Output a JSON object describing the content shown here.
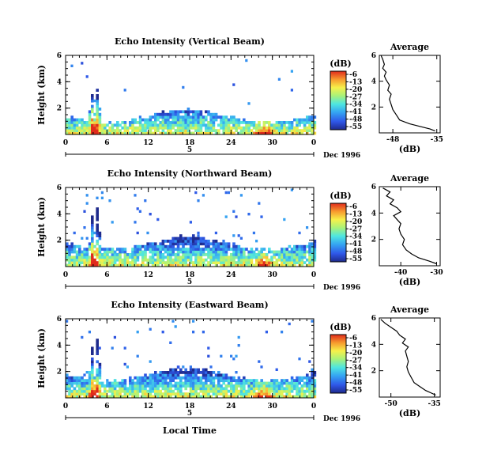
{
  "figure": {
    "dbunit": "(dB)",
    "date_label": "Dec 1996",
    "xlabel": "Local Time",
    "ylabel": "Height (km)"
  },
  "chart_data": [
    {
      "type": "heatmap",
      "title": "Echo Intensity (Vertical Beam)",
      "ylabel": "Height (km)",
      "x_ticks": [
        "0",
        "6",
        "12",
        "18",
        "24",
        "30",
        "0"
      ],
      "y_ticks": [
        "2",
        "4",
        "6"
      ],
      "xlim": [
        0,
        36
      ],
      "ylim": [
        0,
        6
      ],
      "day_marker": "5",
      "colorbar": {
        "label": "(dB)",
        "ticks": [
          "-6",
          "-13",
          "-20",
          "-27",
          "-34",
          "-41",
          "-48",
          "-55"
        ]
      },
      "profile": {
        "title": "Average",
        "xlabel": "(dB)",
        "x_ticks": [
          "-48",
          "-35"
        ],
        "xlim": [
          -52,
          -34
        ],
        "y_ticks": [
          "2",
          "4",
          "6"
        ],
        "ylim": [
          0,
          6
        ],
        "x": [
          -51.5,
          -51,
          -50.5,
          -51,
          -50,
          -50.5,
          -50,
          -49,
          -49.5,
          -48.5,
          -49,
          -48.5,
          -48,
          -47,
          -46,
          -43,
          -40,
          -37,
          -35.5
        ],
        "y": [
          6,
          5.7,
          5.3,
          5.0,
          4.7,
          4.4,
          4.1,
          3.7,
          3.3,
          3.0,
          2.6,
          2.2,
          1.8,
          1.4,
          1.0,
          0.7,
          0.5,
          0.3,
          0.15
        ]
      }
    },
    {
      "type": "heatmap",
      "title": "Echo Intensity (Northward Beam)",
      "ylabel": "Height (km)",
      "x_ticks": [
        "0",
        "6",
        "12",
        "18",
        "24",
        "30",
        "0"
      ],
      "y_ticks": [
        "2",
        "4",
        "6"
      ],
      "xlim": [
        0,
        36
      ],
      "ylim": [
        0,
        6
      ],
      "day_marker": "5",
      "colorbar": {
        "label": "(dB)",
        "ticks": [
          "-6",
          "-13",
          "-20",
          "-27",
          "-34",
          "-41",
          "-48",
          "-55"
        ]
      },
      "profile": {
        "title": "Average",
        "xlabel": "(dB)",
        "x_ticks": [
          "-40",
          "-30"
        ],
        "xlim": [
          -46,
          -29
        ],
        "y_ticks": [
          "2",
          "4",
          "6"
        ],
        "ylim": [
          0,
          6
        ],
        "x": [
          -45,
          -43,
          -44,
          -42,
          -43,
          -41,
          -40,
          -42,
          -41,
          -40,
          -40.5,
          -40,
          -39,
          -39.5,
          -38.5,
          -37,
          -35,
          -32,
          -30
        ],
        "y": [
          5.9,
          5.6,
          5.3,
          5.0,
          4.7,
          4.4,
          4.1,
          3.8,
          3.5,
          3.2,
          2.8,
          2.4,
          2.0,
          1.6,
          1.2,
          0.9,
          0.6,
          0.35,
          0.15
        ]
      }
    },
    {
      "type": "heatmap",
      "title": "Echo Intensity (Eastward Beam)",
      "ylabel": "Height (km)",
      "x_ticks": [
        "0",
        "6",
        "12",
        "18",
        "24",
        "30",
        "0"
      ],
      "y_ticks": [
        "2",
        "4",
        "6"
      ],
      "xlim": [
        0,
        36
      ],
      "ylim": [
        0,
        6
      ],
      "day_marker": "5",
      "colorbar": {
        "label": "(dB)",
        "ticks": [
          "-6",
          "-13",
          "-20",
          "-27",
          "-34",
          "-41",
          "-48",
          "-55"
        ]
      },
      "profile": {
        "title": "Average",
        "xlabel": "(dB)",
        "x_ticks": [
          "-50",
          "-35"
        ],
        "xlim": [
          -54,
          -33
        ],
        "y_ticks": [
          "2",
          "4",
          "6"
        ],
        "ylim": [
          0,
          6
        ],
        "x": [
          -53.5,
          -52,
          -50,
          -48,
          -47,
          -45,
          -46,
          -44,
          -45,
          -44.5,
          -44,
          -44.5,
          -44,
          -43,
          -42,
          -40,
          -38,
          -36,
          -34.5
        ],
        "y": [
          5.9,
          5.6,
          5.3,
          5.0,
          4.7,
          4.4,
          4.1,
          3.8,
          3.5,
          3.1,
          2.7,
          2.3,
          1.9,
          1.5,
          1.1,
          0.8,
          0.5,
          0.3,
          0.15
        ]
      }
    }
  ]
}
